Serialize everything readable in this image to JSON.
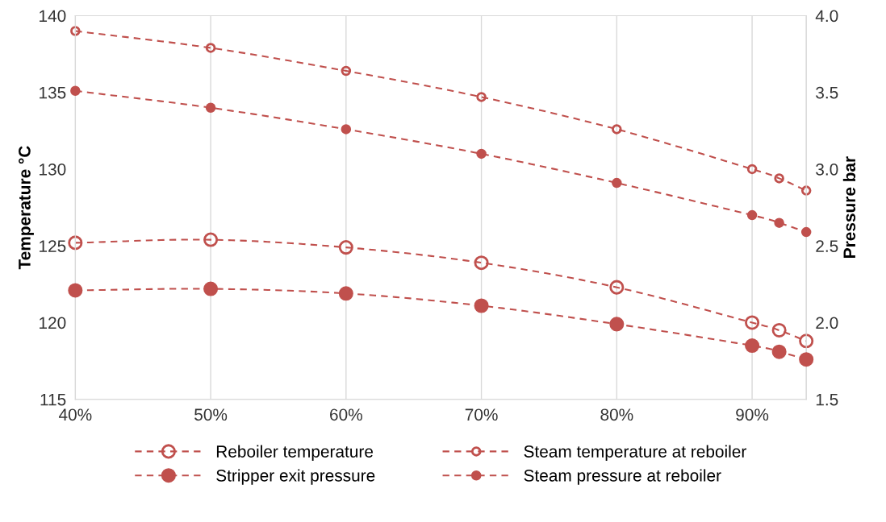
{
  "chart_data": {
    "type": "line",
    "ylabel": "Temperature °C",
    "y2label": "Pressure bar",
    "x": [
      40,
      50,
      60,
      70,
      80,
      90,
      92,
      94
    ],
    "xlim": [
      40,
      94
    ],
    "xticks": [
      {
        "value": 40,
        "label": "40%"
      },
      {
        "value": 50,
        "label": "50%"
      },
      {
        "value": 60,
        "label": "60%"
      },
      {
        "value": 70,
        "label": "70%"
      },
      {
        "value": 80,
        "label": "80%"
      },
      {
        "value": 90,
        "label": "90%"
      }
    ],
    "ylim": [
      115,
      140
    ],
    "yticks": [
      115,
      120,
      125,
      130,
      135,
      140
    ],
    "y2lim": [
      1.5,
      4.0
    ],
    "y2ticks": [
      {
        "value": 1.5,
        "label": "1.5"
      },
      {
        "value": 2.0,
        "label": "2.0"
      },
      {
        "value": 2.5,
        "label": "2.5"
      },
      {
        "value": 3.0,
        "label": "3.0"
      },
      {
        "value": 3.5,
        "label": "3.5"
      },
      {
        "value": 4.0,
        "label": "4.0"
      }
    ],
    "grid": "x",
    "legend": "bottom",
    "marker": "circle",
    "line_style": "dashed",
    "series": [
      {
        "name": "Reboiler temperature",
        "color": "#c0504d",
        "values": [
          125.2,
          125.4,
          124.9,
          123.9,
          122.3,
          120.0,
          119.5,
          118.8
        ]
      },
      {
        "name": "Stripper exit pressure",
        "color": "#c0504d",
        "axis": "y2",
        "values": [
          2.21,
          2.22,
          2.19,
          2.11,
          1.99,
          1.85,
          1.81,
          1.76
        ]
      },
      {
        "name": "Steam temperature at reboiler",
        "color": "#c0504d",
        "values": [
          139.0,
          137.9,
          136.4,
          134.7,
          132.6,
          130.0,
          129.4,
          128.6
        ]
      },
      {
        "name": "Steam pressure at reboiler",
        "color": "#c0504d",
        "axis": "y2",
        "values": [
          3.51,
          3.4,
          3.26,
          3.1,
          2.91,
          2.7,
          2.65,
          2.59
        ]
      }
    ]
  }
}
